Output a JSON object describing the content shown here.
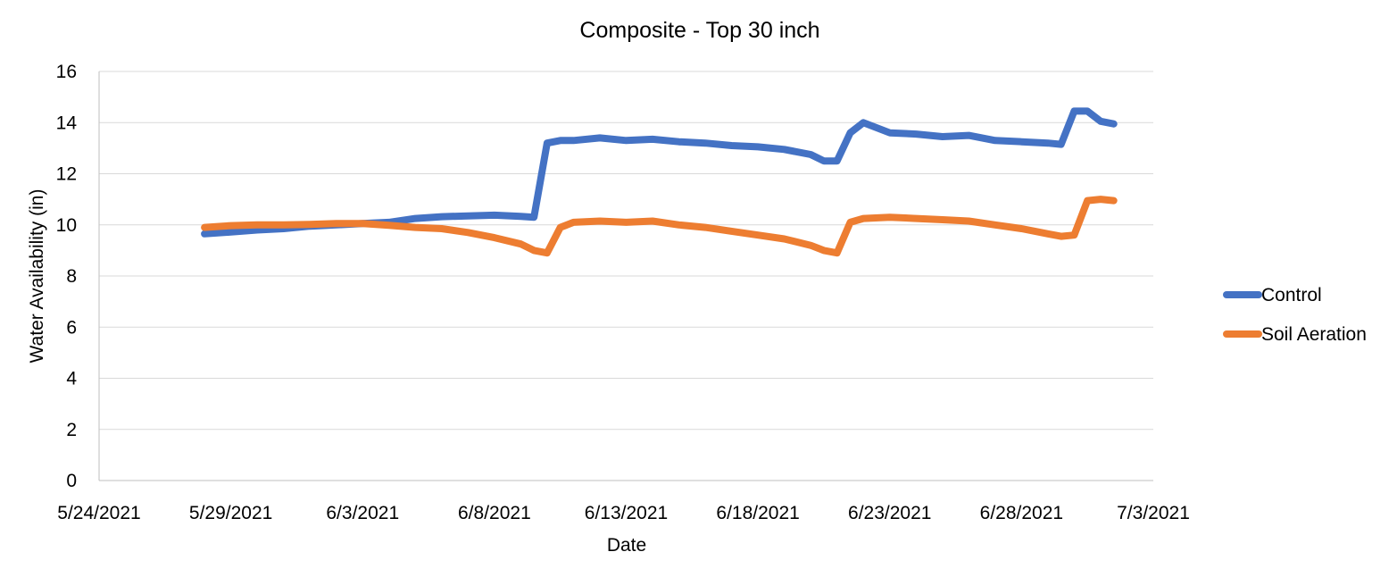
{
  "chart_data": {
    "type": "line",
    "title": "Composite - Top 30 inch",
    "xlabel": "Date",
    "ylabel": "Water Availability (in)",
    "x_axis": {
      "kind": "date",
      "range": [
        "5/24/2021",
        "7/3/2021"
      ],
      "ticks": [
        "5/24/2021",
        "5/29/2021",
        "6/3/2021",
        "6/8/2021",
        "6/13/2021",
        "6/18/2021",
        "6/23/2021",
        "6/28/2021",
        "7/3/2021"
      ]
    },
    "y_axis": {
      "range": [
        0,
        16
      ],
      "ticks": [
        0,
        2,
        4,
        6,
        8,
        10,
        12,
        14,
        16
      ]
    },
    "grid": "horizontal",
    "legend_position": "right",
    "series": [
      {
        "name": "Control",
        "color": "#4472c4",
        "points": [
          [
            "5/28/2021",
            9.65
          ],
          [
            "5/29/2021",
            9.72
          ],
          [
            "5/30/2021",
            9.8
          ],
          [
            "5/31/2021",
            9.85
          ],
          [
            "6/1/2021",
            9.95
          ],
          [
            "6/2/2021",
            10.0
          ],
          [
            "6/3/2021",
            10.05
          ],
          [
            "6/4/2021",
            10.1
          ],
          [
            "6/5/2021",
            10.25
          ],
          [
            "6/6/2021",
            10.32
          ],
          [
            "6/7/2021",
            10.35
          ],
          [
            "6/8/2021",
            10.38
          ],
          [
            "6/9/2021",
            10.33
          ],
          [
            "6/9/2021 12:00",
            10.3
          ],
          [
            "6/10/2021",
            13.2
          ],
          [
            "6/10/2021 12:00",
            13.3
          ],
          [
            "6/11/2021",
            13.3
          ],
          [
            "6/12/2021",
            13.4
          ],
          [
            "6/13/2021",
            13.3
          ],
          [
            "6/14/2021",
            13.35
          ],
          [
            "6/15/2021",
            13.25
          ],
          [
            "6/16/2021",
            13.2
          ],
          [
            "6/17/2021",
            13.1
          ],
          [
            "6/18/2021",
            13.05
          ],
          [
            "6/19/2021",
            12.95
          ],
          [
            "6/20/2021",
            12.75
          ],
          [
            "6/20/2021 12:00",
            12.5
          ],
          [
            "6/21/2021",
            12.5
          ],
          [
            "6/21/2021 12:00",
            13.6
          ],
          [
            "6/22/2021",
            14.0
          ],
          [
            "6/23/2021",
            13.6
          ],
          [
            "6/24/2021",
            13.55
          ],
          [
            "6/25/2021",
            13.45
          ],
          [
            "6/26/2021",
            13.5
          ],
          [
            "6/27/2021",
            13.3
          ],
          [
            "6/28/2021",
            13.25
          ],
          [
            "6/29/2021",
            13.2
          ],
          [
            "6/29/2021 12:00",
            13.15
          ],
          [
            "6/30/2021",
            14.45
          ],
          [
            "6/30/2021 12:00",
            14.45
          ],
          [
            "7/1/2021",
            14.05
          ],
          [
            "7/1/2021 12:00",
            13.95
          ]
        ]
      },
      {
        "name": "Soil Aeration",
        "color": "#ed7d31",
        "points": [
          [
            "5/28/2021",
            9.9
          ],
          [
            "5/29/2021",
            9.97
          ],
          [
            "5/30/2021",
            10.0
          ],
          [
            "5/31/2021",
            10.0
          ],
          [
            "6/1/2021",
            10.02
          ],
          [
            "6/2/2021",
            10.05
          ],
          [
            "6/3/2021",
            10.05
          ],
          [
            "6/4/2021",
            9.98
          ],
          [
            "6/5/2021",
            9.9
          ],
          [
            "6/6/2021",
            9.85
          ],
          [
            "6/7/2021",
            9.7
          ],
          [
            "6/8/2021",
            9.5
          ],
          [
            "6/9/2021",
            9.25
          ],
          [
            "6/9/2021 12:00",
            9.0
          ],
          [
            "6/10/2021",
            8.9
          ],
          [
            "6/10/2021 12:00",
            9.9
          ],
          [
            "6/11/2021",
            10.1
          ],
          [
            "6/12/2021",
            10.15
          ],
          [
            "6/13/2021",
            10.1
          ],
          [
            "6/14/2021",
            10.15
          ],
          [
            "6/15/2021",
            10.0
          ],
          [
            "6/16/2021",
            9.9
          ],
          [
            "6/17/2021",
            9.75
          ],
          [
            "6/18/2021",
            9.6
          ],
          [
            "6/19/2021",
            9.45
          ],
          [
            "6/20/2021",
            9.2
          ],
          [
            "6/20/2021 12:00",
            9.0
          ],
          [
            "6/21/2021",
            8.9
          ],
          [
            "6/21/2021 12:00",
            10.1
          ],
          [
            "6/22/2021",
            10.25
          ],
          [
            "6/23/2021",
            10.3
          ],
          [
            "6/24/2021",
            10.25
          ],
          [
            "6/25/2021",
            10.2
          ],
          [
            "6/26/2021",
            10.15
          ],
          [
            "6/27/2021",
            10.0
          ],
          [
            "6/28/2021",
            9.85
          ],
          [
            "6/29/2021",
            9.65
          ],
          [
            "6/29/2021 12:00",
            9.55
          ],
          [
            "6/30/2021",
            9.6
          ],
          [
            "6/30/2021 12:00",
            10.95
          ],
          [
            "7/1/2021",
            11.0
          ],
          [
            "7/1/2021 12:00",
            10.95
          ]
        ]
      }
    ]
  }
}
